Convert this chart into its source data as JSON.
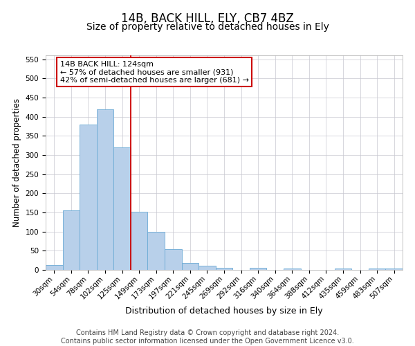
{
  "title": "14B, BACK HILL, ELY, CB7 4BZ",
  "subtitle": "Size of property relative to detached houses in Ely",
  "xlabel": "Distribution of detached houses by size in Ely",
  "ylabel": "Number of detached properties",
  "categories": [
    "30sqm",
    "54sqm",
    "78sqm",
    "102sqm",
    "125sqm",
    "149sqm",
    "173sqm",
    "197sqm",
    "221sqm",
    "245sqm",
    "269sqm",
    "292sqm",
    "316sqm",
    "340sqm",
    "364sqm",
    "388sqm",
    "412sqm",
    "435sqm",
    "459sqm",
    "483sqm",
    "507sqm"
  ],
  "values": [
    13,
    155,
    380,
    420,
    320,
    152,
    100,
    55,
    18,
    10,
    5,
    0,
    5,
    0,
    3,
    0,
    0,
    3,
    0,
    3,
    3
  ],
  "bar_color": "#b8d0ea",
  "bar_edge_color": "#6aaad4",
  "vline_x": 4.5,
  "vline_color": "#cc0000",
  "annotation_text": "14B BACK HILL: 124sqm\n← 57% of detached houses are smaller (931)\n42% of semi-detached houses are larger (681) →",
  "annotation_box_color": "#ffffff",
  "annotation_box_edge": "#cc0000",
  "ylim": [
    0,
    560
  ],
  "yticks": [
    0,
    50,
    100,
    150,
    200,
    250,
    300,
    350,
    400,
    450,
    500,
    550
  ],
  "footer_text": "Contains HM Land Registry data © Crown copyright and database right 2024.\nContains public sector information licensed under the Open Government Licence v3.0.",
  "bg_color": "#ffffff",
  "grid_color": "#c8c8d0",
  "title_fontsize": 12,
  "subtitle_fontsize": 10,
  "xlabel_fontsize": 9,
  "ylabel_fontsize": 8.5,
  "tick_fontsize": 7.5,
  "footer_fontsize": 7,
  "annotation_fontsize": 8
}
